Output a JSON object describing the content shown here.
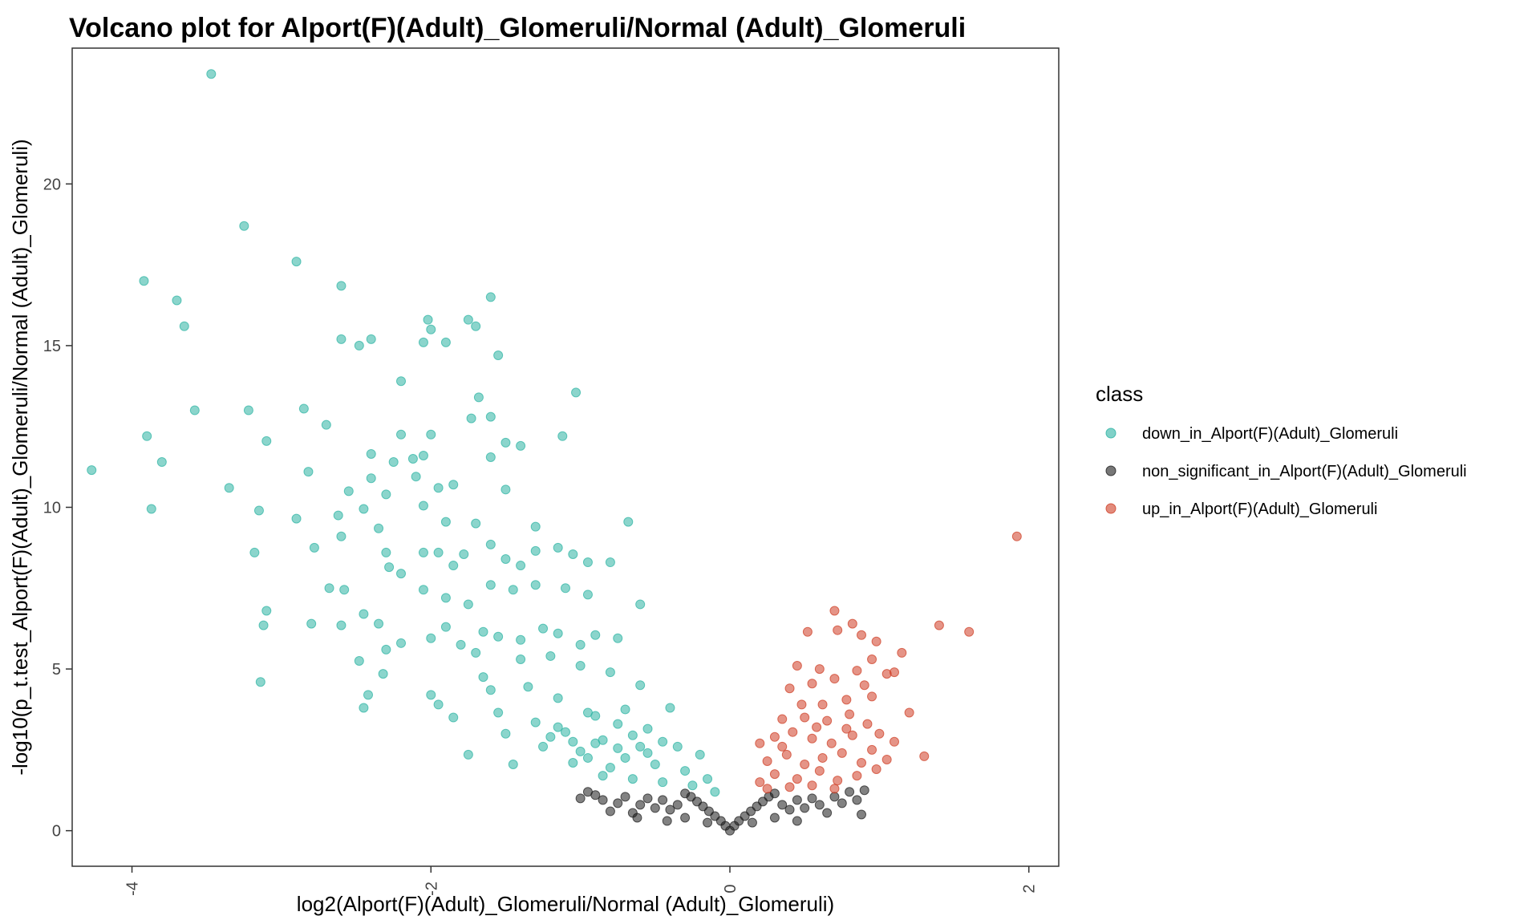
{
  "chart_data": {
    "type": "scatter",
    "title": "Volcano plot for Alport(F)(Adult)_Glomeruli/Normal (Adult)_Glomeruli",
    "xlabel": "log2(Alport(F)(Adult)_Glomeruli/Normal (Adult)_Glomeruli)",
    "ylabel": "-log10(p_t.test_Alport(F)(Adult)_Glomeruli/Normal (Adult)_Glomeruli)",
    "xlim": [
      -4.4,
      2.2
    ],
    "ylim": [
      -1.1,
      24.2
    ],
    "x_ticks": [
      -4,
      -2,
      0,
      2
    ],
    "y_ticks": [
      0,
      5,
      10,
      15,
      20
    ],
    "x_tick_labels": [
      "-4",
      "-2",
      "0",
      "2"
    ],
    "y_tick_labels": [
      "0",
      "5",
      "10",
      "15",
      "20"
    ],
    "grid": false,
    "legend": {
      "title": "class",
      "position": "right"
    },
    "series": [
      {
        "name": "down_in_Alport(F)(Adult)_Glomeruli",
        "color": "#2bb3a3",
        "points": [
          [
            -3.47,
            23.4
          ],
          [
            -3.25,
            18.7
          ],
          [
            -3.92,
            17.0
          ],
          [
            -3.7,
            16.4
          ],
          [
            -3.65,
            15.6
          ],
          [
            -2.9,
            17.6
          ],
          [
            -2.6,
            16.85
          ],
          [
            -1.6,
            16.5
          ],
          [
            -2.6,
            15.2
          ],
          [
            -2.48,
            15.0
          ],
          [
            -2.4,
            15.2
          ],
          [
            -2.02,
            15.8
          ],
          [
            -2.0,
            15.5
          ],
          [
            -2.05,
            15.1
          ],
          [
            -1.9,
            15.1
          ],
          [
            -1.75,
            15.8
          ],
          [
            -1.7,
            15.6
          ],
          [
            -1.55,
            14.7
          ],
          [
            -2.2,
            13.9
          ],
          [
            -3.58,
            13.0
          ],
          [
            -3.22,
            13.0
          ],
          [
            -2.85,
            13.05
          ],
          [
            -1.68,
            13.4
          ],
          [
            -1.6,
            12.8
          ],
          [
            -1.73,
            12.75
          ],
          [
            -1.03,
            13.55
          ],
          [
            -3.9,
            12.2
          ],
          [
            -3.8,
            11.4
          ],
          [
            -3.1,
            12.05
          ],
          [
            -2.7,
            12.55
          ],
          [
            -2.2,
            12.25
          ],
          [
            -2.0,
            12.25
          ],
          [
            -1.12,
            12.2
          ],
          [
            -1.5,
            12.0
          ],
          [
            -1.4,
            11.9
          ],
          [
            -4.27,
            11.15
          ],
          [
            -2.82,
            11.1
          ],
          [
            -2.25,
            11.4
          ],
          [
            -2.12,
            11.5
          ],
          [
            -2.05,
            11.6
          ],
          [
            -1.6,
            11.55
          ],
          [
            -3.35,
            10.6
          ],
          [
            -2.4,
            11.65
          ],
          [
            -2.55,
            10.5
          ],
          [
            -2.4,
            10.9
          ],
          [
            -2.3,
            10.4
          ],
          [
            -2.1,
            10.95
          ],
          [
            -1.95,
            10.6
          ],
          [
            -1.85,
            10.7
          ],
          [
            -1.5,
            10.55
          ],
          [
            -3.87,
            9.95
          ],
          [
            -3.15,
            9.9
          ],
          [
            -2.9,
            9.65
          ],
          [
            -2.62,
            9.75
          ],
          [
            -2.45,
            9.95
          ],
          [
            -2.05,
            10.05
          ],
          [
            -1.9,
            9.55
          ],
          [
            -1.7,
            9.5
          ],
          [
            -1.3,
            9.4
          ],
          [
            -0.68,
            9.55
          ],
          [
            -3.18,
            8.6
          ],
          [
            -3.1,
            6.8
          ],
          [
            -3.12,
            6.35
          ],
          [
            -3.14,
            4.6
          ],
          [
            -2.78,
            8.75
          ],
          [
            -2.6,
            9.1
          ],
          [
            -2.35,
            9.35
          ],
          [
            -2.3,
            8.6
          ],
          [
            -2.28,
            8.15
          ],
          [
            -2.2,
            7.95
          ],
          [
            -2.05,
            8.6
          ],
          [
            -1.95,
            8.6
          ],
          [
            -1.85,
            8.2
          ],
          [
            -1.78,
            8.55
          ],
          [
            -1.6,
            8.85
          ],
          [
            -1.5,
            8.4
          ],
          [
            -1.4,
            8.2
          ],
          [
            -1.3,
            8.65
          ],
          [
            -1.15,
            8.75
          ],
          [
            -1.05,
            8.55
          ],
          [
            -0.95,
            8.3
          ],
          [
            -0.8,
            8.3
          ],
          [
            -2.68,
            7.5
          ],
          [
            -2.58,
            7.45
          ],
          [
            -2.45,
            6.7
          ],
          [
            -2.35,
            6.4
          ],
          [
            -2.05,
            7.45
          ],
          [
            -1.9,
            7.2
          ],
          [
            -1.75,
            7.0
          ],
          [
            -1.6,
            7.6
          ],
          [
            -1.45,
            7.45
          ],
          [
            -1.3,
            7.6
          ],
          [
            -1.1,
            7.5
          ],
          [
            -0.95,
            7.3
          ],
          [
            -0.6,
            7.0
          ],
          [
            -2.8,
            6.4
          ],
          [
            -2.6,
            6.35
          ],
          [
            -2.3,
            5.6
          ],
          [
            -2.2,
            5.8
          ],
          [
            -2.0,
            5.95
          ],
          [
            -1.9,
            6.3
          ],
          [
            -1.8,
            5.75
          ],
          [
            -1.65,
            6.15
          ],
          [
            -1.55,
            6.0
          ],
          [
            -1.4,
            5.9
          ],
          [
            -1.25,
            6.25
          ],
          [
            -1.15,
            6.1
          ],
          [
            -1.0,
            5.75
          ],
          [
            -0.9,
            6.05
          ],
          [
            -0.75,
            5.95
          ],
          [
            -2.48,
            5.25
          ],
          [
            -2.32,
            4.85
          ],
          [
            -2.42,
            4.2
          ],
          [
            -2.45,
            3.8
          ],
          [
            -2.0,
            4.2
          ],
          [
            -1.95,
            3.9
          ],
          [
            -1.85,
            3.5
          ],
          [
            -1.75,
            2.35
          ],
          [
            -1.7,
            5.5
          ],
          [
            -1.65,
            4.75
          ],
          [
            -1.6,
            4.35
          ],
          [
            -1.55,
            3.65
          ],
          [
            -1.5,
            3.0
          ],
          [
            -1.45,
            2.05
          ],
          [
            -1.4,
            5.3
          ],
          [
            -1.35,
            4.45
          ],
          [
            -1.3,
            3.35
          ],
          [
            -1.25,
            2.6
          ],
          [
            -1.2,
            5.4
          ],
          [
            -1.15,
            4.1
          ],
          [
            -1.1,
            3.05
          ],
          [
            -1.05,
            2.1
          ],
          [
            -1.0,
            5.1
          ],
          [
            -0.95,
            3.65
          ],
          [
            -0.9,
            2.7
          ],
          [
            -0.85,
            1.7
          ],
          [
            -0.8,
            4.9
          ],
          [
            -0.75,
            3.3
          ],
          [
            -0.7,
            2.25
          ],
          [
            -0.65,
            1.6
          ],
          [
            -0.6,
            4.5
          ],
          [
            -0.55,
            3.15
          ],
          [
            -0.5,
            2.05
          ],
          [
            -0.45,
            1.5
          ],
          [
            -0.4,
            3.8
          ],
          [
            -0.35,
            2.6
          ],
          [
            -0.3,
            1.85
          ],
          [
            -0.25,
            1.4
          ],
          [
            -0.2,
            2.35
          ],
          [
            -0.15,
            1.6
          ],
          [
            -0.1,
            1.2
          ],
          [
            -0.95,
            2.25
          ],
          [
            -0.85,
            2.8
          ],
          [
            -0.75,
            2.55
          ],
          [
            -0.65,
            2.95
          ],
          [
            -0.55,
            2.4
          ],
          [
            -0.45,
            2.75
          ],
          [
            -1.05,
            2.75
          ],
          [
            -1.15,
            3.2
          ],
          [
            -0.9,
            3.55
          ],
          [
            -0.7,
            3.75
          ],
          [
            -0.6,
            2.6
          ],
          [
            -0.8,
            1.95
          ],
          [
            -1.0,
            2.45
          ],
          [
            -1.2,
            2.9
          ]
        ]
      },
      {
        "name": "non_significant_in_Alport(F)(Adult)_Glomeruli",
        "color": "#1c1c1c",
        "points": [
          [
            -0.0,
            0.0
          ],
          [
            -0.03,
            0.15
          ],
          [
            -0.06,
            0.3
          ],
          [
            -0.1,
            0.45
          ],
          [
            -0.14,
            0.6
          ],
          [
            -0.18,
            0.75
          ],
          [
            -0.22,
            0.9
          ],
          [
            -0.26,
            1.05
          ],
          [
            -0.3,
            1.15
          ],
          [
            -0.35,
            0.8
          ],
          [
            -0.4,
            0.65
          ],
          [
            -0.45,
            0.95
          ],
          [
            -0.5,
            0.7
          ],
          [
            -0.55,
            1.0
          ],
          [
            -0.6,
            0.8
          ],
          [
            -0.65,
            0.55
          ],
          [
            -0.7,
            1.05
          ],
          [
            -0.75,
            0.85
          ],
          [
            -0.8,
            0.6
          ],
          [
            -0.85,
            0.95
          ],
          [
            -0.9,
            1.1
          ],
          [
            -0.95,
            1.2
          ],
          [
            -1.0,
            1.0
          ],
          [
            -0.62,
            0.4
          ],
          [
            -0.42,
            0.3
          ],
          [
            -0.3,
            0.4
          ],
          [
            -0.15,
            0.25
          ],
          [
            0.03,
            0.15
          ],
          [
            0.06,
            0.3
          ],
          [
            0.1,
            0.45
          ],
          [
            0.14,
            0.6
          ],
          [
            0.18,
            0.75
          ],
          [
            0.22,
            0.9
          ],
          [
            0.26,
            1.05
          ],
          [
            0.3,
            1.15
          ],
          [
            0.35,
            0.8
          ],
          [
            0.4,
            0.65
          ],
          [
            0.45,
            0.95
          ],
          [
            0.5,
            0.7
          ],
          [
            0.55,
            1.0
          ],
          [
            0.6,
            0.8
          ],
          [
            0.65,
            0.55
          ],
          [
            0.7,
            1.05
          ],
          [
            0.75,
            0.85
          ],
          [
            0.8,
            1.2
          ],
          [
            0.85,
            0.95
          ],
          [
            0.88,
            0.5
          ],
          [
            0.9,
            1.25
          ],
          [
            0.15,
            0.25
          ],
          [
            0.3,
            0.4
          ],
          [
            0.45,
            0.3
          ]
        ]
      },
      {
        "name": "up_in_Alport(F)(Adult)_Glomeruli",
        "color": "#cf3d24",
        "points": [
          [
            1.92,
            9.1
          ],
          [
            1.4,
            6.35
          ],
          [
            1.6,
            6.15
          ],
          [
            0.7,
            6.8
          ],
          [
            0.82,
            6.4
          ],
          [
            0.52,
            6.15
          ],
          [
            0.72,
            6.2
          ],
          [
            0.88,
            6.05
          ],
          [
            0.98,
            5.85
          ],
          [
            1.15,
            5.5
          ],
          [
            1.1,
            4.9
          ],
          [
            0.95,
            5.3
          ],
          [
            0.85,
            4.95
          ],
          [
            0.6,
            5.0
          ],
          [
            0.45,
            5.1
          ],
          [
            0.4,
            4.4
          ],
          [
            0.55,
            4.55
          ],
          [
            0.7,
            4.7
          ],
          [
            0.9,
            4.5
          ],
          [
            1.05,
            4.85
          ],
          [
            0.48,
            3.9
          ],
          [
            0.62,
            3.9
          ],
          [
            0.78,
            4.05
          ],
          [
            0.95,
            4.15
          ],
          [
            1.2,
            3.65
          ],
          [
            0.35,
            3.45
          ],
          [
            0.5,
            3.5
          ],
          [
            0.65,
            3.4
          ],
          [
            0.8,
            3.6
          ],
          [
            0.92,
            3.3
          ],
          [
            1.0,
            3.0
          ],
          [
            1.1,
            2.75
          ],
          [
            1.3,
            2.3
          ],
          [
            0.2,
            2.7
          ],
          [
            0.3,
            2.9
          ],
          [
            0.42,
            3.05
          ],
          [
            0.55,
            2.85
          ],
          [
            0.68,
            2.7
          ],
          [
            0.82,
            2.95
          ],
          [
            0.95,
            2.5
          ],
          [
            1.05,
            2.2
          ],
          [
            0.25,
            2.15
          ],
          [
            0.38,
            2.35
          ],
          [
            0.5,
            2.05
          ],
          [
            0.62,
            2.25
          ],
          [
            0.75,
            2.4
          ],
          [
            0.88,
            2.1
          ],
          [
            0.2,
            1.5
          ],
          [
            0.3,
            1.75
          ],
          [
            0.45,
            1.6
          ],
          [
            0.6,
            1.85
          ],
          [
            0.72,
            1.55
          ],
          [
            0.85,
            1.7
          ],
          [
            0.98,
            1.9
          ],
          [
            0.25,
            1.3
          ],
          [
            0.4,
            1.35
          ],
          [
            0.55,
            1.4
          ],
          [
            0.7,
            1.3
          ],
          [
            0.35,
            2.6
          ],
          [
            0.58,
            3.2
          ],
          [
            0.78,
            3.15
          ]
        ]
      }
    ]
  }
}
